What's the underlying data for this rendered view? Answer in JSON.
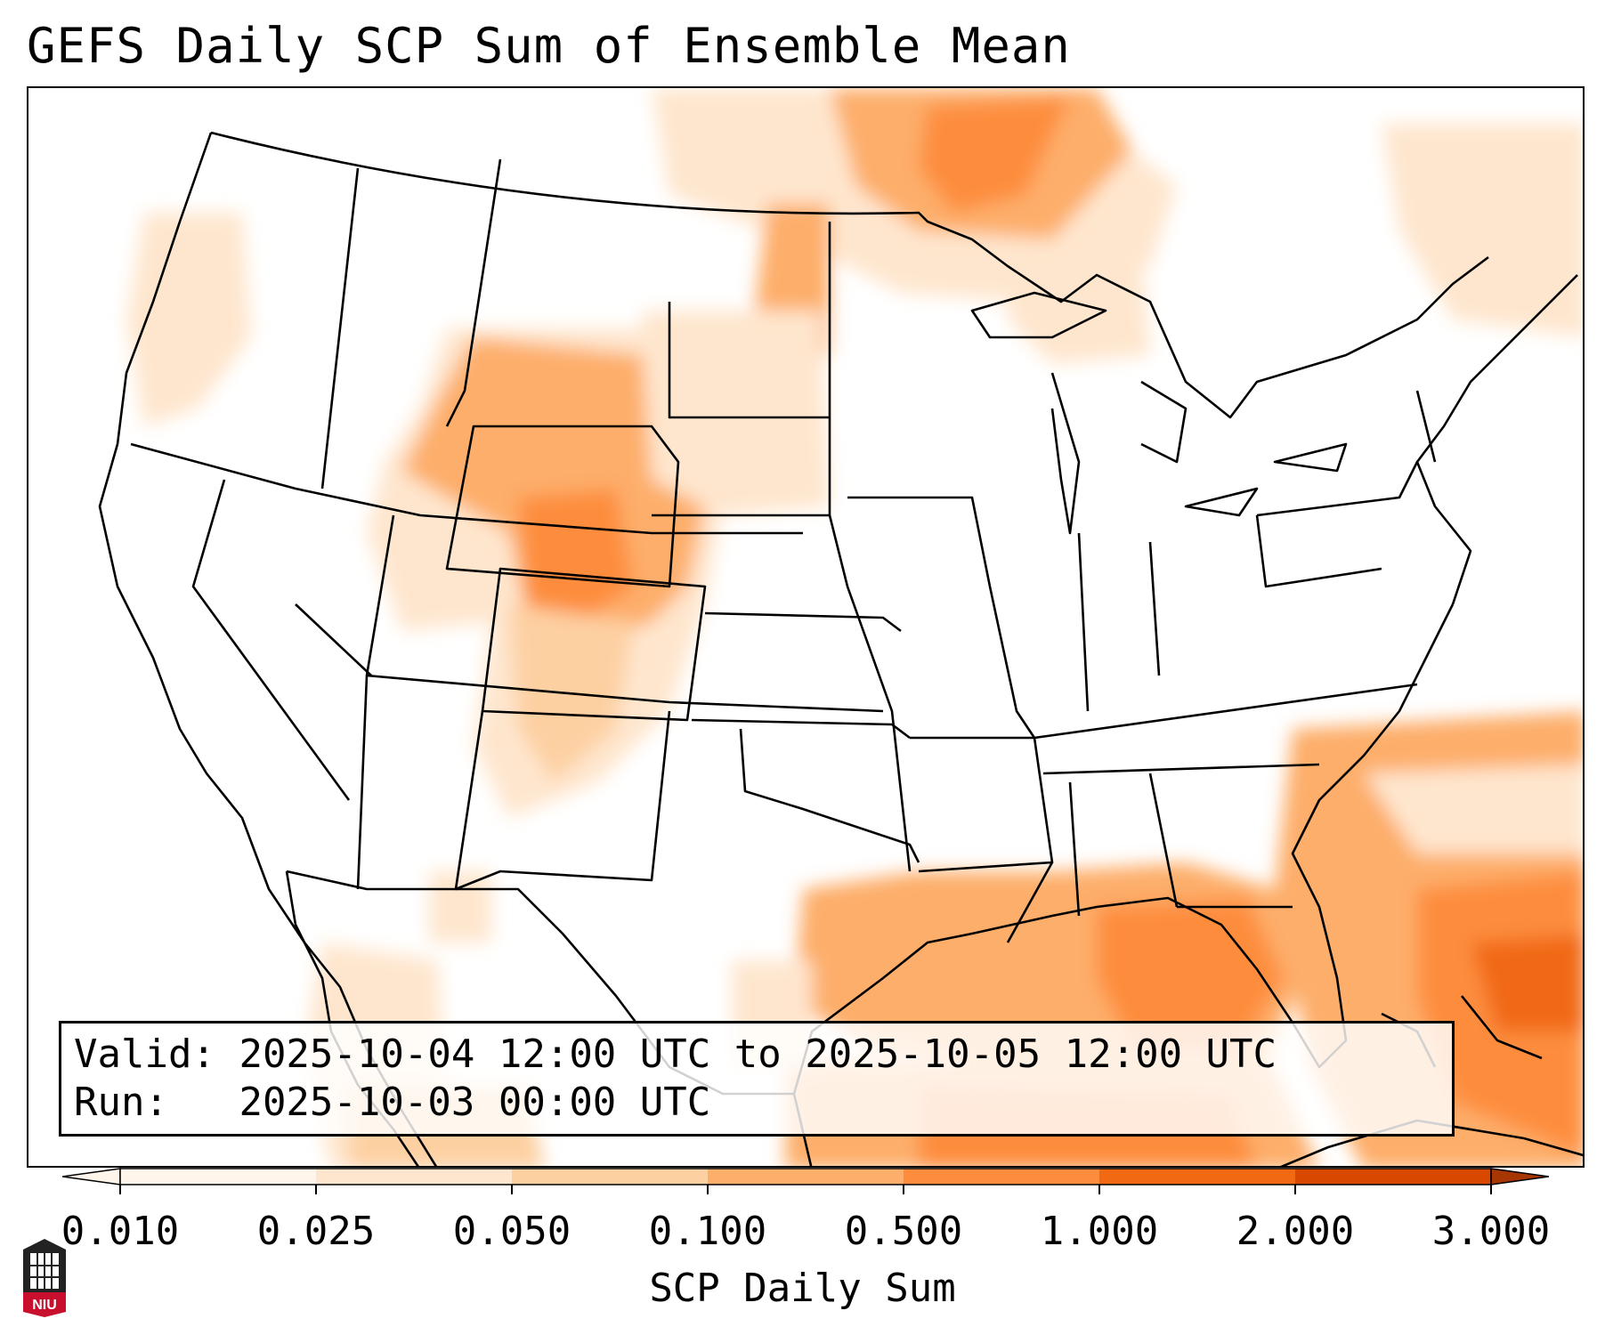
{
  "title": "GEFS Daily SCP Sum of Ensemble Mean",
  "info": {
    "valid_label": "Valid:",
    "valid_value": "2025-10-04 12:00 UTC to 2025-10-05 12:00 UTC",
    "run_label": "Run:",
    "run_value": "2025-10-03 00:00 UTC"
  },
  "colorbar": {
    "label": "SCP Daily Sum",
    "ticks": [
      "0.010",
      "0.025",
      "0.050",
      "0.100",
      "0.500",
      "1.000",
      "2.000",
      "3.000"
    ],
    "colors": [
      "#fff5eb",
      "#fee6ce",
      "#fdd0a2",
      "#fdae6b",
      "#fd8d3c",
      "#f16913",
      "#d94801",
      "#a63603"
    ],
    "extend": "both"
  },
  "logo": {
    "text": "NIU",
    "color": "#c8102e"
  }
}
